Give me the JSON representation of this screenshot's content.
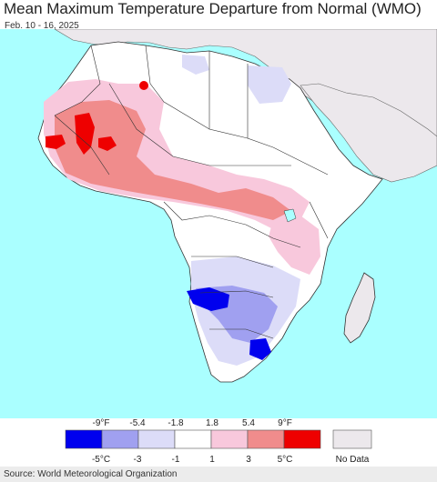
{
  "title": "Mean Maximum Temperature Departure from Normal (WMO)",
  "subtitle": "Feb. 10 - 16, 2025",
  "source": "Source: World Meteorological Organization",
  "legend": {
    "top_labels": [
      "-9°F",
      "-5.4",
      "-1.8",
      "1.8",
      "5.4",
      "9°F"
    ],
    "bottom_labels": [
      "-5°C",
      "-3",
      "-1",
      "1",
      "3",
      "5°C"
    ],
    "no_data_label": "No Data",
    "colors": [
      "#0000ee",
      "#a0a0f0",
      "#dcdcf8",
      "#ffffff",
      "#f8c8dc",
      "#f08c8c",
      "#ee0000"
    ],
    "no_data_color": "#ece8ec"
  },
  "map_colors": {
    "ocean": "#aaffff",
    "land": "#ffffff",
    "no_data": "#ece8ec",
    "borders": "#333333"
  }
}
